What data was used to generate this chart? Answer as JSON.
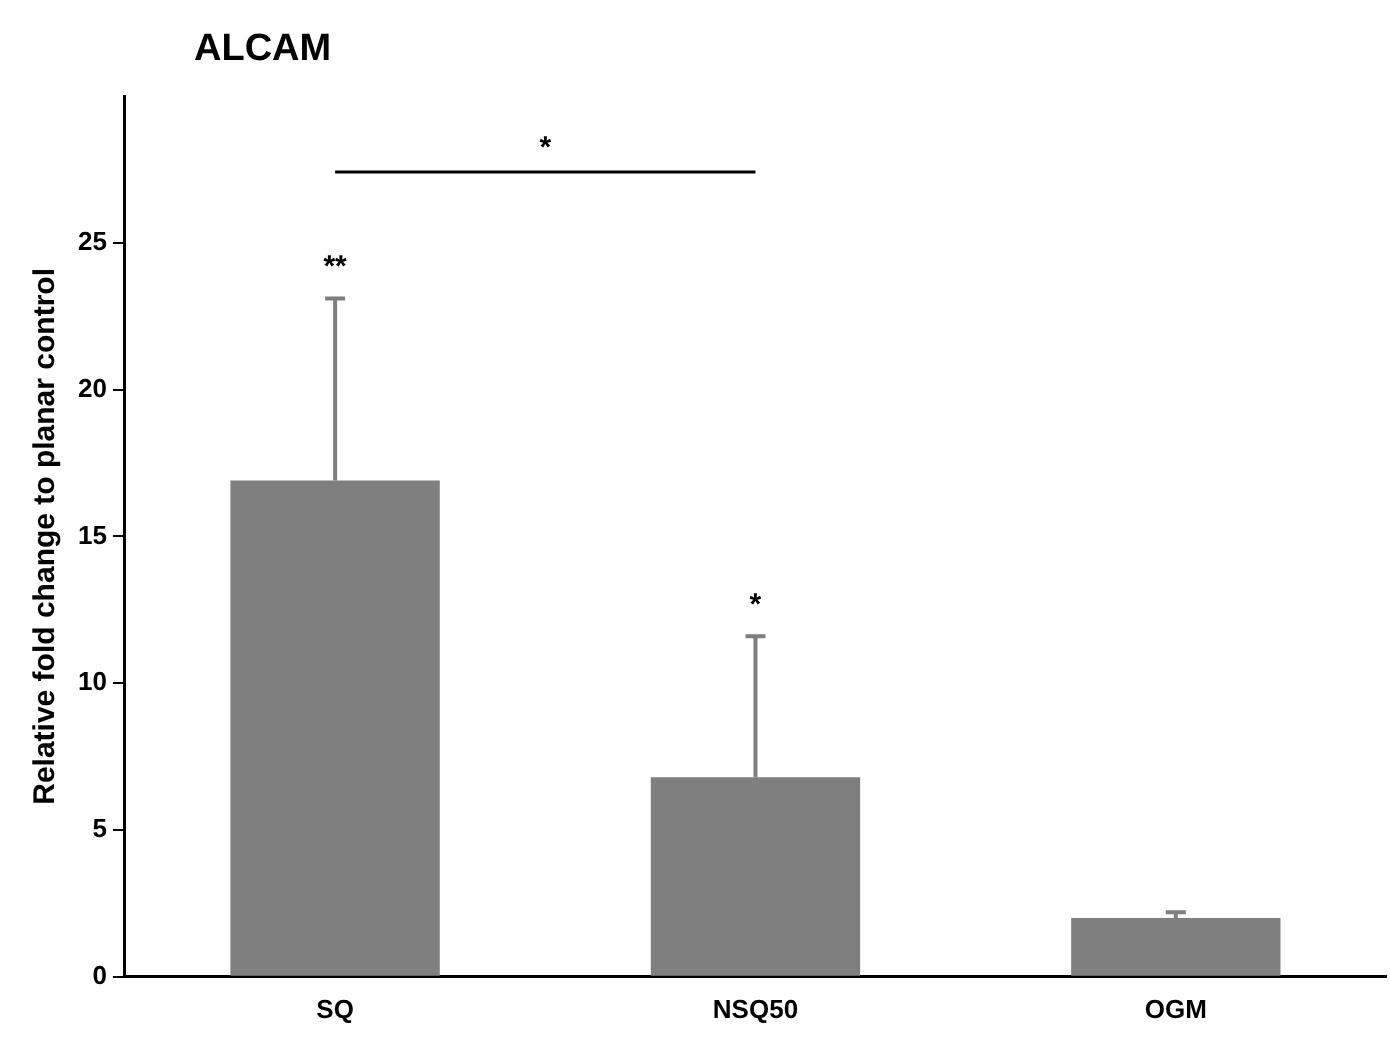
{
  "chart_data": {
    "type": "bar",
    "title": "ALCAM",
    "ylabel": "Relative fold change to planar control",
    "categories": [
      "SQ",
      "NSQ50",
      "OGM"
    ],
    "values": [
      16.9,
      6.8,
      2.0
    ],
    "color": "#7f7f7f",
    "errors": [
      [
        16.9,
        23.1
      ],
      [
        6.8,
        11.6
      ],
      [
        2.0,
        2.2
      ]
    ],
    "ylim": [
      0,
      30
    ],
    "yticks": [
      0,
      5,
      10,
      15,
      20,
      25
    ],
    "grid": false,
    "legend": false,
    "annotations": [
      "**",
      "*",
      "*"
    ]
  }
}
